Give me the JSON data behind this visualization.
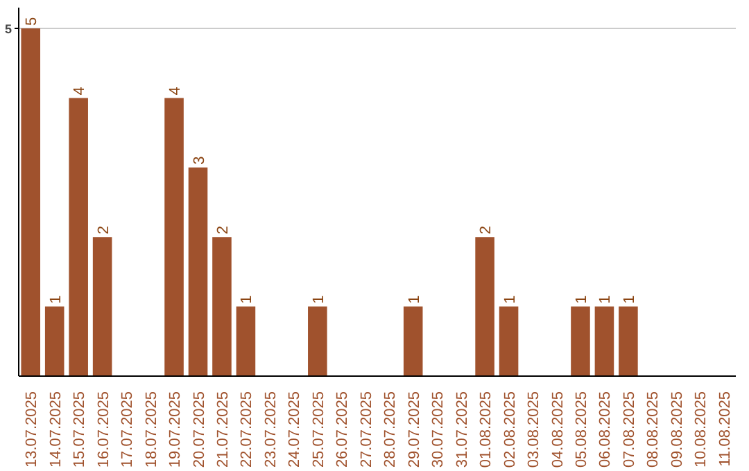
{
  "chart_data": {
    "type": "bar",
    "categories": [
      "13.07.2025",
      "14.07.2025",
      "15.07.2025",
      "16.07.2025",
      "17.07.2025",
      "18.07.2025",
      "19.07.2025",
      "20.07.2025",
      "21.07.2025",
      "22.07.2025",
      "23.07.2025",
      "24.07.2025",
      "25.07.2025",
      "26.07.2025",
      "27.07.2025",
      "28.07.2025",
      "29.07.2025",
      "30.07.2025",
      "31.07.2025",
      "01.08.2025",
      "02.08.2025",
      "03.08.2025",
      "04.08.2025",
      "05.08.2025",
      "06.08.2025",
      "07.08.2025",
      "08.08.2025",
      "09.08.2025",
      "10.08.2025",
      "11.08.2025"
    ],
    "values": [
      5,
      1,
      4,
      2,
      0,
      0,
      4,
      3,
      2,
      1,
      0,
      0,
      1,
      0,
      0,
      0,
      1,
      0,
      0,
      2,
      1,
      0,
      0,
      1,
      1,
      1,
      0,
      0,
      0,
      0
    ],
    "value_labels": [
      "5",
      "1",
      "4",
      "2",
      null,
      null,
      "4",
      "3",
      "2",
      "1",
      null,
      null,
      "1",
      null,
      null,
      null,
      "1",
      null,
      null,
      "2",
      "1",
      null,
      null,
      "1",
      "1",
      "1",
      null,
      null,
      null,
      null
    ],
    "color": "#a0522d",
    "ylim": [
      0,
      5.3
    ],
    "yticks": [
      5
    ],
    "grid": "y"
  }
}
